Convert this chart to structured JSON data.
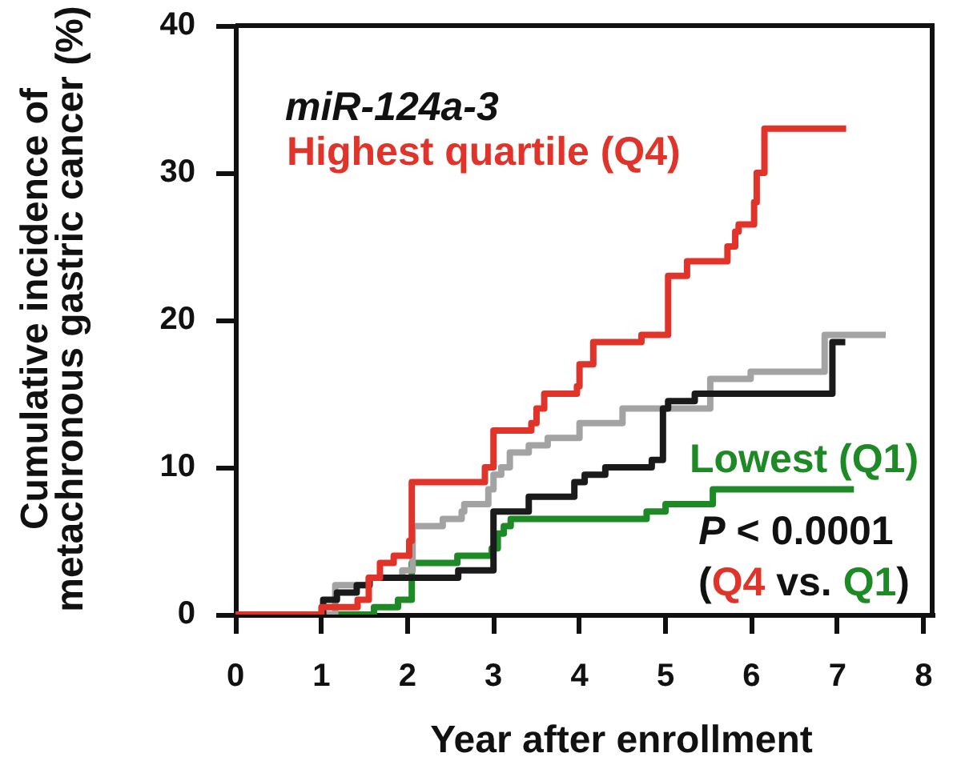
{
  "chart_data": {
    "type": "step",
    "xlabel": "Year after enrollment",
    "ylabel": "Cumulative incidence of metachronous gastric cancer (%)",
    "annotations": [
      "miR-124a-3",
      "P < 0.0001",
      "(Q4 vs. Q1)"
    ],
    "series": [
      {
        "name": "Highest quartile (Q4)",
        "color": "#e0332a",
        "x": [
          0,
          1,
          1.42,
          1.55,
          1.68,
          1.84,
          2.02,
          2.05,
          2.9,
          3,
          3.44,
          3.5,
          3.59,
          3.97,
          4,
          4.16,
          4.72,
          5.03,
          5.25,
          5.72,
          5.81,
          5.85,
          6.03,
          6.06,
          6.15,
          7.1
        ],
        "values": [
          0,
          0.5,
          1,
          2.5,
          3.5,
          4,
          5,
          9,
          10,
          12.5,
          13,
          14,
          15,
          15.5,
          17,
          18.5,
          19,
          23,
          24,
          25,
          26,
          26.5,
          28,
          30,
          33,
          33
        ]
      },
      {
        "color": "#1a1a1a",
        "x": [
          0,
          1.02,
          1.18,
          1.41,
          1.56,
          2.59,
          3,
          3.41,
          3.94,
          4.06,
          4.3,
          4.84,
          4.97,
          5.03,
          5.34,
          6.94,
          7.09
        ],
        "values": [
          0,
          1,
          1.5,
          2,
          2.5,
          3,
          7,
          8,
          9,
          9.5,
          10,
          10.5,
          14,
          14.5,
          15,
          18.5,
          18.5
        ]
      },
      {
        "color": "#a3a3a3",
        "x": [
          0,
          1.16,
          1.55,
          1.94,
          2.06,
          2.41,
          2.63,
          2.66,
          2.94,
          3,
          3.09,
          3.19,
          3.41,
          3.63,
          4,
          4.5,
          5.52,
          5.99,
          6.85,
          7.56
        ],
        "values": [
          0,
          2,
          2.5,
          3,
          6,
          6.5,
          7,
          7.5,
          8.5,
          9.5,
          10,
          11,
          11.5,
          12,
          13,
          14,
          16,
          16.5,
          19,
          19
        ]
      },
      {
        "name": "Lowest (Q1)",
        "color": "#1e8a25",
        "x": [
          0,
          1.61,
          1.89,
          2.05,
          2.58,
          2.98,
          3.05,
          3.12,
          3.2,
          4.78,
          5,
          5.55,
          7.19
        ],
        "values": [
          0,
          0.5,
          1,
          3.5,
          4,
          4.5,
          5.5,
          6,
          6.5,
          7,
          7.5,
          8.5,
          8.5
        ]
      }
    ],
    "xlim": [
      0,
      8.1
    ],
    "ylim": [
      0,
      40
    ],
    "xticks": [
      0,
      1,
      2,
      3,
      4,
      5,
      6,
      7,
      8
    ],
    "yticks": [
      0,
      10,
      20,
      30,
      40
    ]
  }
}
